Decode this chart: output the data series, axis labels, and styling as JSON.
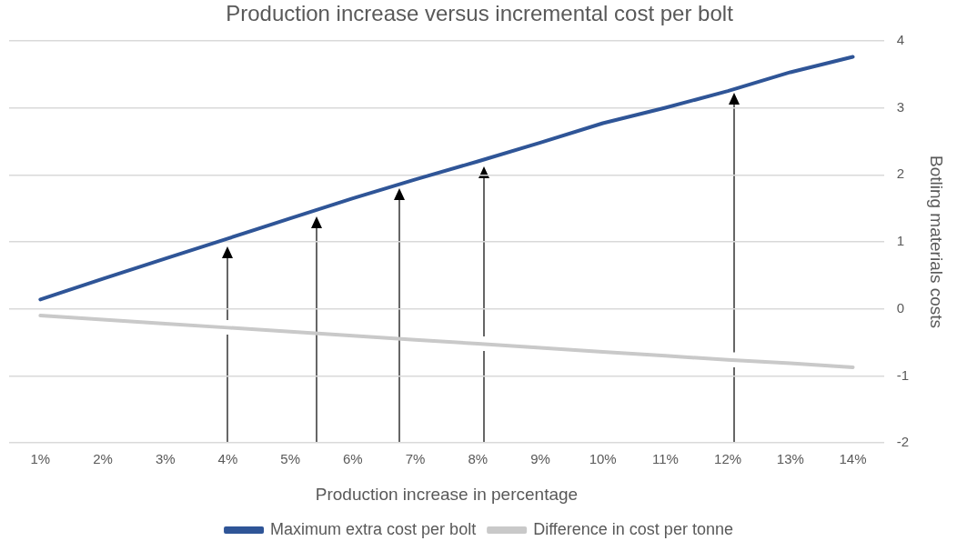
{
  "chart_data": {
    "type": "line",
    "title": "Production increase versus incremental cost per bolt",
    "xlabel": "Production increase in percentage",
    "ylabel": "Botling materials costs",
    "categories": [
      "1%",
      "2%",
      "3%",
      "4%",
      "5%",
      "6%",
      "7%",
      "8%",
      "9%",
      "10%",
      "11%",
      "12%",
      "13%",
      "14%"
    ],
    "series": [
      {
        "name": "Maximum extra cost per bolt",
        "color": "#2f5597",
        "values": [
          0.14,
          0.45,
          0.75,
          1.05,
          1.35,
          1.65,
          1.93,
          2.2,
          2.48,
          2.77,
          3.0,
          3.25,
          3.53,
          3.76
        ]
      },
      {
        "name": "Difference in cost per tonne",
        "color": "#c9c9c9",
        "values": [
          -0.1,
          -0.16,
          -0.22,
          -0.28,
          -0.34,
          -0.4,
          -0.46,
          -0.52,
          -0.58,
          -0.64,
          -0.7,
          -0.76,
          -0.81,
          -0.87
        ]
      }
    ],
    "ylim": [
      -2,
      4
    ],
    "yticks": [
      -2,
      -1,
      0,
      1,
      2,
      3,
      4
    ],
    "grid": "y",
    "legend": "bottom",
    "marker": "none",
    "line_style": "solid"
  }
}
